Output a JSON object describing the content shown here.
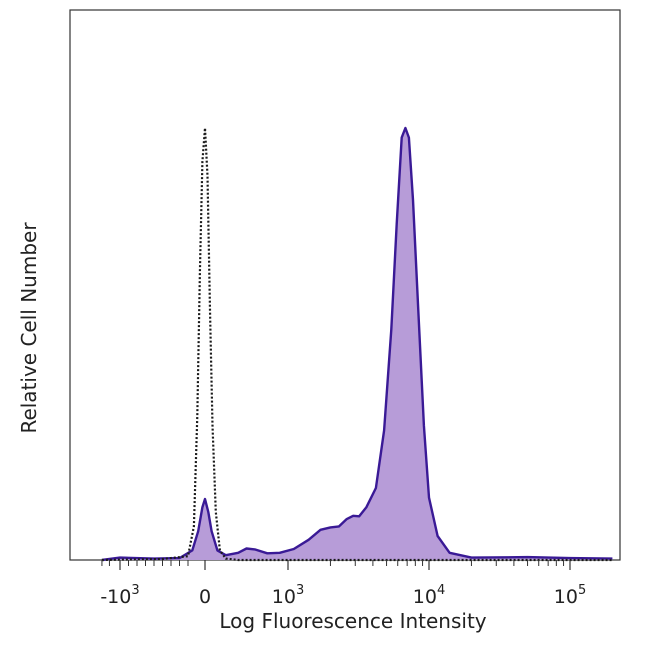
{
  "chart_data": {
    "type": "area",
    "title": "",
    "xlabel": "Log Fluorescence Intensity",
    "ylabel": "Relative Cell Number",
    "x_scale": "biexponential",
    "x_ticks": [
      {
        "value": -1000,
        "base": "-10",
        "exp": "3"
      },
      {
        "value": 0,
        "base": "0",
        "exp": ""
      },
      {
        "value": 1000,
        "base": "10",
        "exp": "3"
      },
      {
        "value": 10000,
        "base": "10",
        "exp": "4"
      },
      {
        "value": 100000,
        "base": "10",
        "exp": "5"
      }
    ],
    "xlim": [
      -2000,
      200000
    ],
    "ylim": [
      0,
      100
    ],
    "grid": false,
    "legend": "none",
    "series": [
      {
        "style": "filled",
        "fill": "#b79cd8",
        "stroke": "#3a1a96",
        "points": [
          [
            -2000,
            0
          ],
          [
            -1000,
            0.5
          ],
          [
            -600,
            0.3
          ],
          [
            -300,
            0.4
          ],
          [
            -150,
            2
          ],
          [
            -80,
            6
          ],
          [
            -30,
            11
          ],
          [
            0,
            12.7
          ],
          [
            40,
            10
          ],
          [
            80,
            6
          ],
          [
            150,
            2
          ],
          [
            250,
            1
          ],
          [
            400,
            1.5
          ],
          [
            500,
            2.4
          ],
          [
            600,
            2.2
          ],
          [
            750,
            1.4
          ],
          [
            900,
            1.5
          ],
          [
            1100,
            2.3
          ],
          [
            1400,
            4.2
          ],
          [
            1700,
            6.3
          ],
          [
            2000,
            6.8
          ],
          [
            2300,
            7
          ],
          [
            2600,
            8.5
          ],
          [
            2900,
            9.2
          ],
          [
            3200,
            9.1
          ],
          [
            3600,
            11
          ],
          [
            4200,
            15
          ],
          [
            4800,
            27
          ],
          [
            5400,
            48
          ],
          [
            5900,
            70
          ],
          [
            6400,
            88
          ],
          [
            6800,
            90
          ],
          [
            7200,
            88
          ],
          [
            7700,
            75
          ],
          [
            8400,
            52
          ],
          [
            9200,
            28
          ],
          [
            10000,
            13
          ],
          [
            11500,
            5
          ],
          [
            14000,
            1.5
          ],
          [
            20000,
            0.5
          ],
          [
            50000,
            0.6
          ],
          [
            100000,
            0.4
          ],
          [
            200000,
            0.3
          ]
        ]
      },
      {
        "style": "dotted",
        "stroke": "#1a1a1a",
        "points": [
          [
            -2000,
            0
          ],
          [
            -500,
            0.2
          ],
          [
            -200,
            0.8
          ],
          [
            -130,
            7
          ],
          [
            -90,
            30
          ],
          [
            -60,
            60
          ],
          [
            -30,
            83
          ],
          [
            0,
            90
          ],
          [
            30,
            80
          ],
          [
            60,
            52
          ],
          [
            90,
            28
          ],
          [
            130,
            10
          ],
          [
            180,
            2
          ],
          [
            250,
            0.3
          ],
          [
            400,
            0
          ],
          [
            200000,
            0
          ]
        ]
      }
    ]
  }
}
